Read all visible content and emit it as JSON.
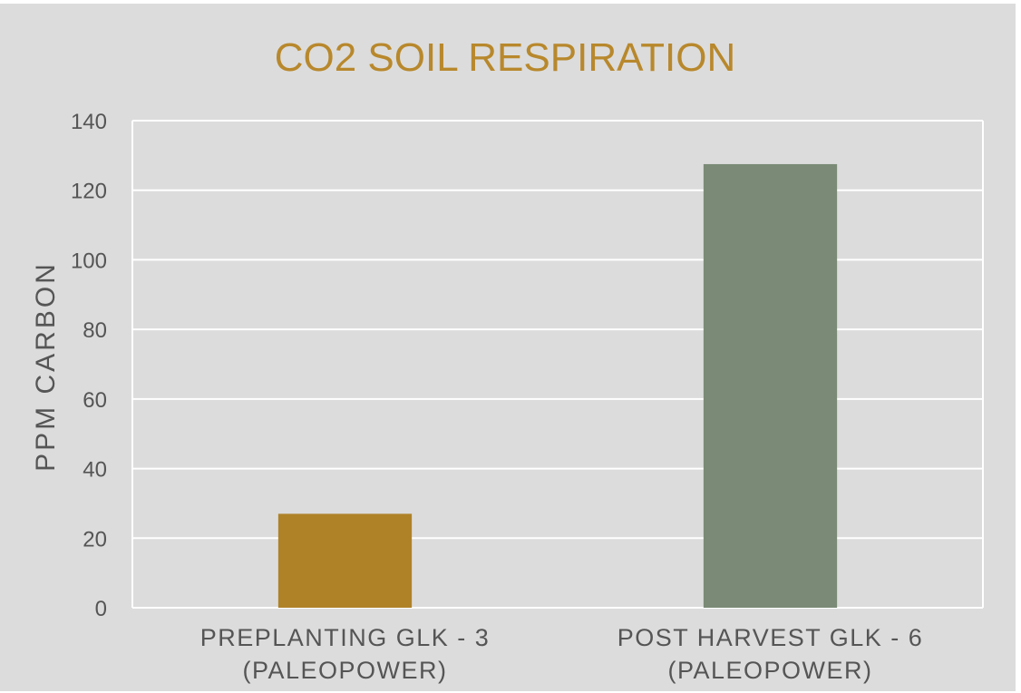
{
  "chart_data": {
    "type": "bar",
    "title": "CO2 SOIL RESPIRATION",
    "xlabel": "",
    "ylabel": "PPM CARBON",
    "categories": [
      [
        "PREPLANTING GLK - 3",
        "(PALEOPOWER)"
      ],
      [
        "POST HARVEST GLK - 6",
        "(PALEOPOWER)"
      ]
    ],
    "values": [
      27,
      127.5
    ],
    "bar_colors": [
      "#af8228",
      "#7a8a76"
    ],
    "ylim": [
      0,
      140
    ],
    "yticks": [
      0,
      20,
      40,
      60,
      80,
      100,
      120,
      140
    ],
    "grid": true,
    "legend": "none"
  },
  "colors": {
    "background": "#dcdcdc",
    "title": "#b8882c",
    "axis_text": "#555555",
    "gridline": "#ffffff"
  }
}
